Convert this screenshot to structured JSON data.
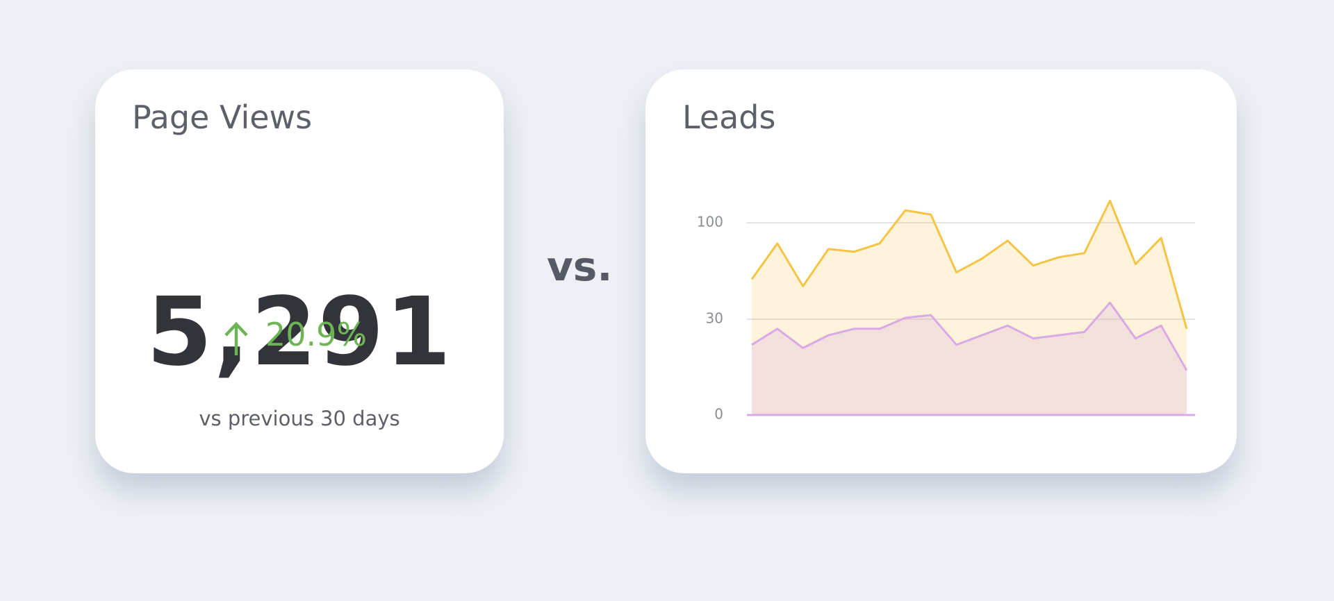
{
  "kpi": {
    "title": "Page Views",
    "value": "5,291",
    "change": "20.9%",
    "comparison": "vs previous 30 days"
  },
  "separator": "vs.",
  "chart_data": {
    "type": "area",
    "title": "Leads",
    "categories": [
      null,
      null,
      null,
      null,
      null,
      null,
      null,
      null,
      null,
      null,
      null,
      null,
      null,
      null,
      null,
      null,
      null,
      null
    ],
    "series": [
      {
        "color": "#f5c445",
        "values": [
          59,
          85,
          54,
          81,
          79,
          85,
          109,
          106,
          64,
          74,
          87,
          69,
          75,
          78,
          116,
          70,
          89,
          27
        ]
      },
      {
        "color": "#d8a9e5",
        "values": [
          22,
          27,
          21,
          25,
          27,
          27,
          31,
          33,
          22,
          25,
          28,
          24,
          25,
          26,
          42,
          24,
          28,
          14
        ]
      }
    ],
    "ylim": [
      0,
      120
    ],
    "yticks": [
      0,
      30,
      100
    ],
    "grid": true
  }
}
